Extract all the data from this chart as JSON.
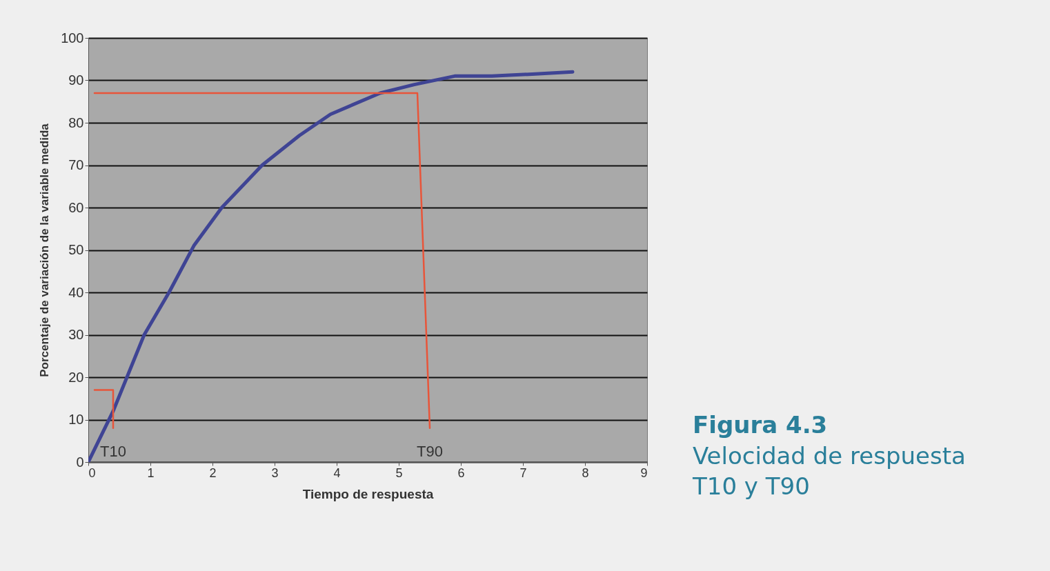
{
  "chart_data": {
    "type": "line",
    "xlabel": "Tiempo de respuesta",
    "ylabel": "Porcentaje de variación de la variable medida",
    "xlim": [
      0,
      9
    ],
    "ylim": [
      0,
      100
    ],
    "xticks": [
      0,
      1,
      2,
      3,
      4,
      5,
      6,
      7,
      8,
      9
    ],
    "yticks": [
      0,
      10,
      20,
      30,
      40,
      50,
      60,
      70,
      80,
      90,
      100
    ],
    "grid": "y",
    "series": [
      {
        "color": "#3f4494",
        "x": [
          0,
          0.4,
          0.9,
          1.3,
          1.7,
          2.15,
          2.8,
          3.4,
          3.9,
          4.7,
          5.25,
          5.9,
          6.5,
          7.2,
          7.8
        ],
        "values": [
          0,
          12,
          30,
          40,
          51,
          60,
          70,
          77,
          82,
          87,
          89,
          91,
          91,
          91.5,
          92
        ]
      },
      {
        "name": "T10",
        "color": "#e8553a",
        "x": [
          0.1,
          0.4,
          0.4
        ],
        "values": [
          17,
          17,
          8
        ]
      },
      {
        "name": "T90",
        "color": "#e8553a",
        "x": [
          0.1,
          5.3,
          5.5
        ],
        "values": [
          87,
          87,
          8
        ]
      }
    ],
    "annotations": [
      "Figura 4.3",
      "Velocidad de respuesta",
      "T10 y T90"
    ]
  }
}
